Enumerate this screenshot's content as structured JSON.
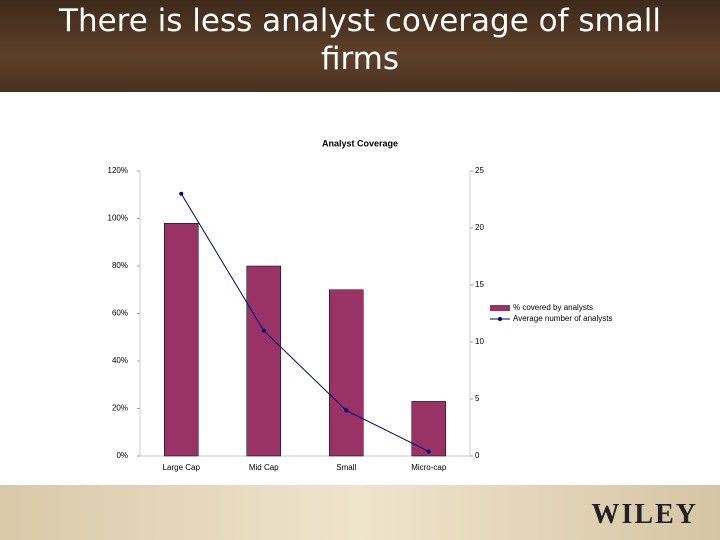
{
  "title": "There is less analyst coverage of small firms",
  "logo": "WILEY",
  "chart_data": {
    "type": "bar_line",
    "title": "Analyst Coverage",
    "categories": [
      "Large Cap",
      "Mid Cap",
      "Small",
      "Micro-cap"
    ],
    "series": [
      {
        "name": "% covered by analysts",
        "type": "bar",
        "color": "#993366",
        "values": [
          98,
          80,
          70,
          23
        ]
      },
      {
        "name": "Average number of analysts",
        "type": "line",
        "axis": "y2",
        "color": "#000080",
        "values": [
          23,
          11,
          4,
          0.4
        ]
      }
    ],
    "ylim": [
      0,
      120
    ],
    "yticks": [
      {
        "value": 0,
        "label": "0%"
      },
      {
        "value": 20,
        "label": "20%"
      },
      {
        "value": 40,
        "label": "40%"
      },
      {
        "value": 60,
        "label": "60%"
      },
      {
        "value": 80,
        "label": "80%"
      },
      {
        "value": 100,
        "label": "100%"
      },
      {
        "value": 120,
        "label": "120%"
      }
    ],
    "y2lim": [
      0,
      25
    ],
    "y2ticks": [
      0,
      5,
      10,
      15,
      20,
      25
    ],
    "legend": "right"
  }
}
